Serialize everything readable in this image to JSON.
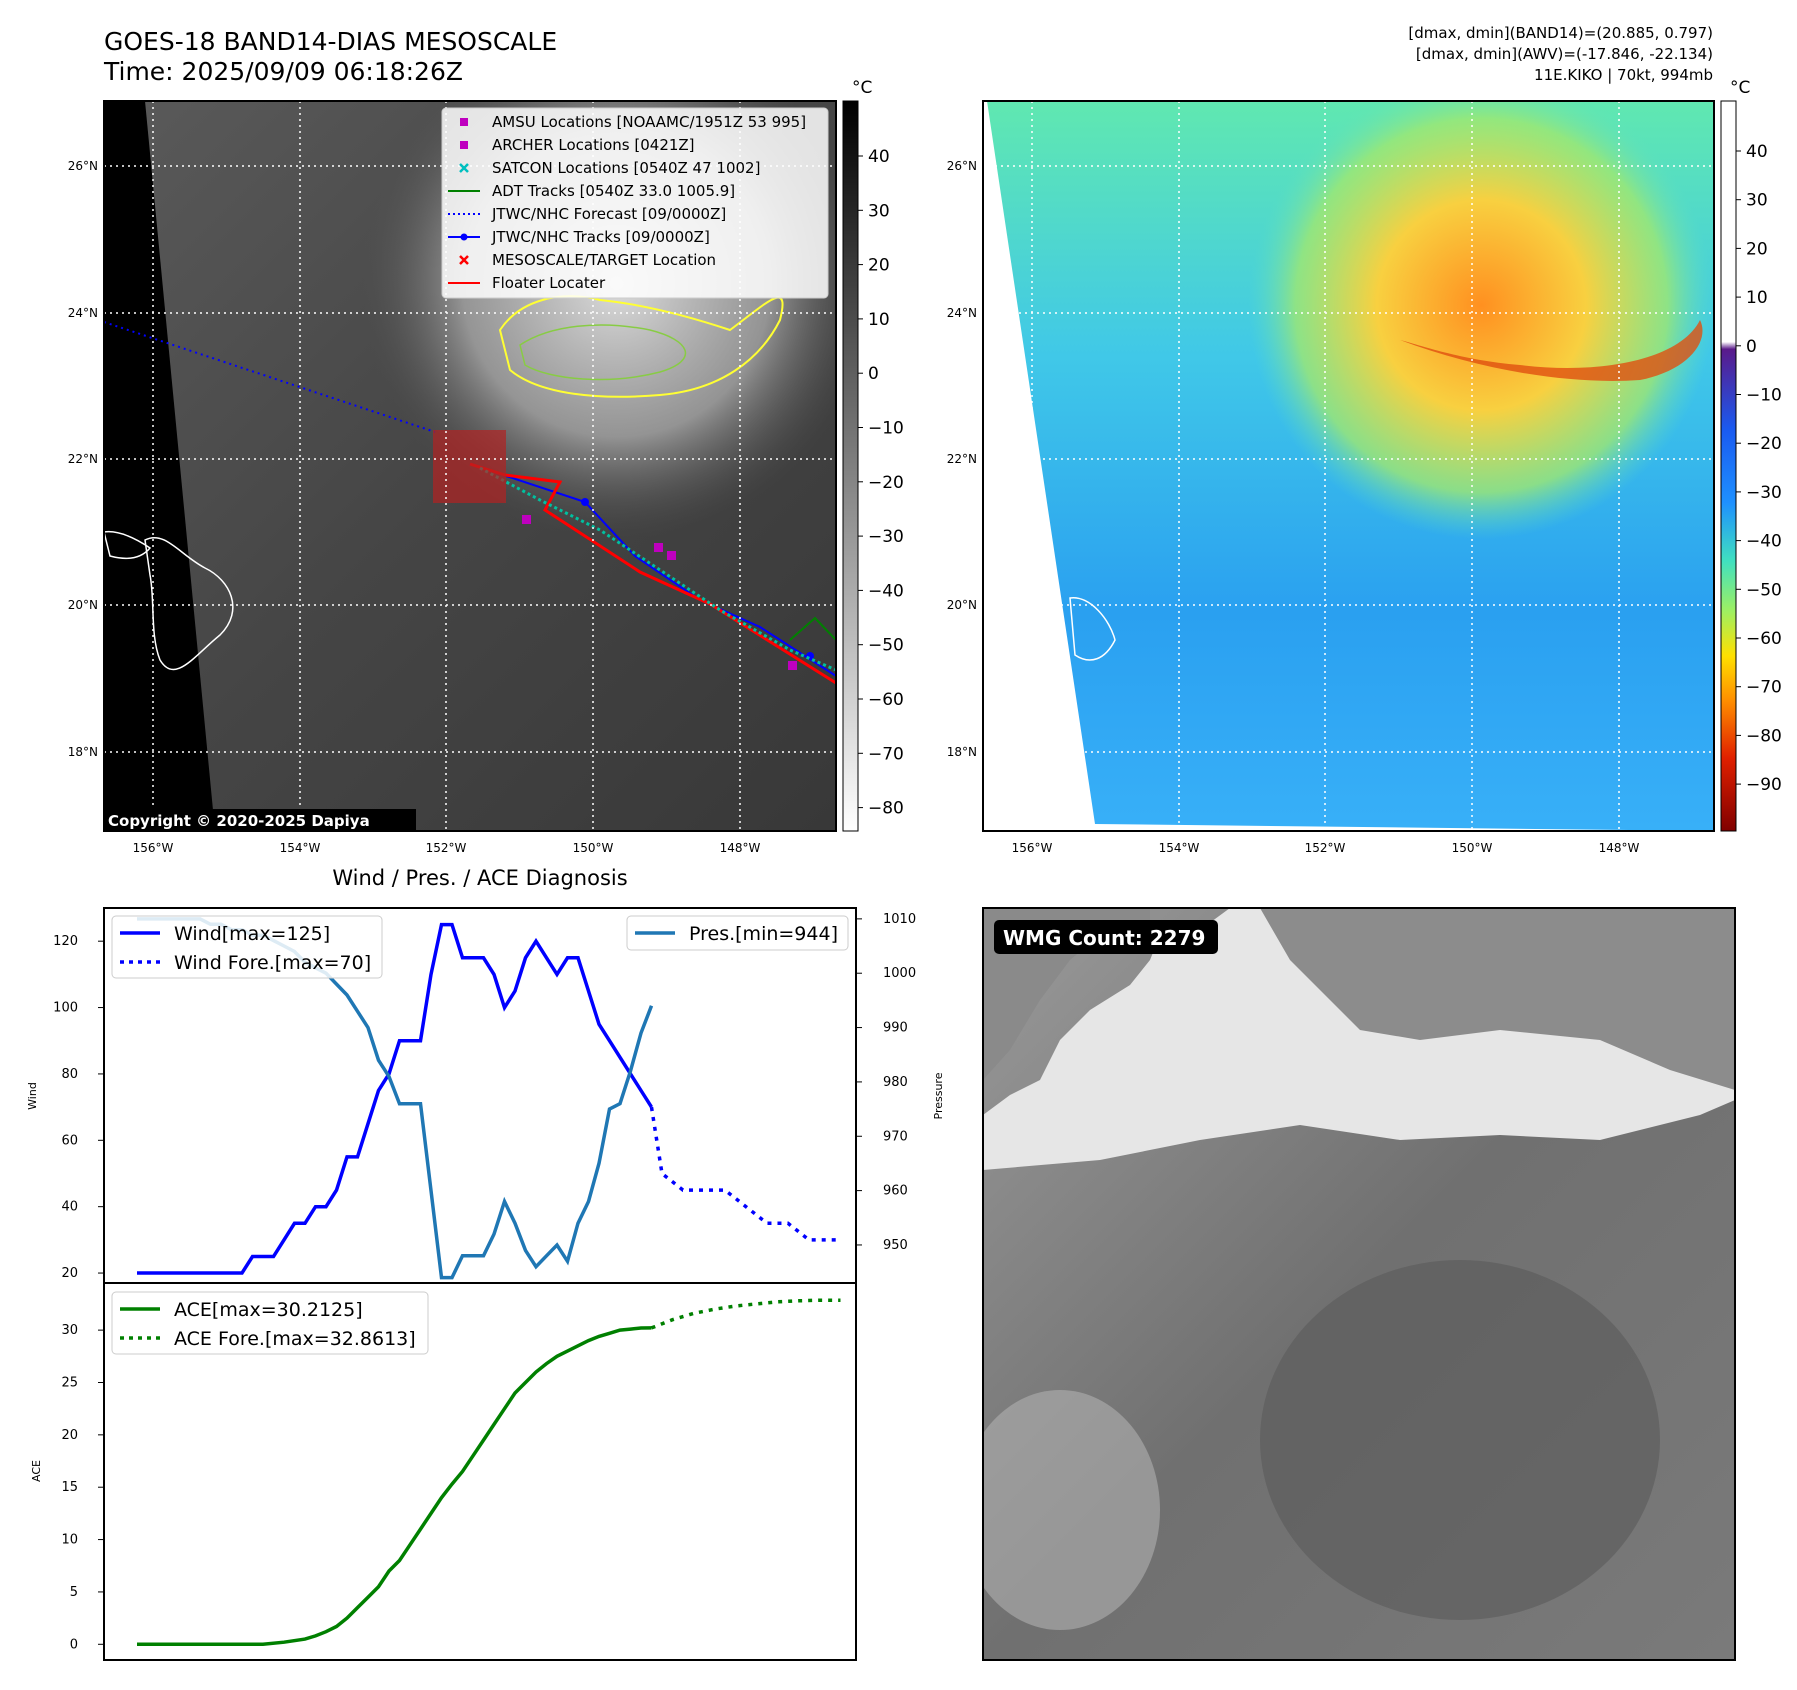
{
  "header": {
    "title_line1": "GOES-18 BAND14-DIAS MESOSCALE",
    "title_line2": "Time: 2025/09/09 06:18:26Z",
    "info_line1": "[dmax, dmin](BAND14)=(20.885, 0.797)",
    "info_line2": "[dmax, dmin](AWV)=(-17.846, -22.134)",
    "info_line3": "11E.KIKO | 70kt, 994mb"
  },
  "map_axes": {
    "lat_labels": [
      "26°N",
      "24°N",
      "22°N",
      "20°N",
      "18°N"
    ],
    "lon_labels": [
      "156°W",
      "154°W",
      "152°W",
      "150°W",
      "148°W"
    ]
  },
  "ir_panel": {
    "colorbar_unit": "°C",
    "colorbar_ticks": [
      "40",
      "30",
      "20",
      "10",
      "0",
      "−10",
      "−20",
      "−30",
      "−40",
      "−50",
      "−60",
      "−70",
      "−80"
    ],
    "copyright": "Copyright © 2020-2025 Dapiya",
    "legend": [
      {
        "label": "AMSU Locations [NOAAMC/1951Z 53 995]",
        "color": "#bf00bf",
        "icon": "square-marker"
      },
      {
        "label": "ARCHER Locations [0421Z]",
        "color": "#bf00bf",
        "icon": "square-marker"
      },
      {
        "label": "SATCON Locations [0540Z 47 1002]",
        "color": "#00bfbf",
        "icon": "x-marker"
      },
      {
        "label": "ADT Tracks [0540Z 33.0 1005.9]",
        "color": "#008000",
        "icon": "solid-line"
      },
      {
        "label": "JTWC/NHC Forecast [09/0000Z]",
        "color": "#0000ff",
        "icon": "dotted-line"
      },
      {
        "label": "JTWC/NHC Tracks [09/0000Z]",
        "color": "#0000ff",
        "icon": "line-dot"
      },
      {
        "label": "MESOSCALE/TARGET Location",
        "color": "#ff0000",
        "icon": "x-marker"
      },
      {
        "label": "Floater Locater",
        "color": "#ff0000",
        "icon": "solid-line"
      }
    ]
  },
  "wv_panel": {
    "colorbar_unit": "°C",
    "colorbar_ticks": [
      "40",
      "30",
      "20",
      "10",
      "0",
      "−10",
      "−20",
      "−30",
      "−40",
      "−50",
      "−60",
      "−70",
      "−80",
      "−90"
    ]
  },
  "diagnosis": {
    "title": "Wind / Pres. / ACE Diagnosis",
    "wind_axis_label": "Wind",
    "pressure_axis_label": "Pressure",
    "ace_axis_label": "ACE",
    "wind_ticks": [
      "120",
      "100",
      "80",
      "60",
      "40",
      "20"
    ],
    "pressure_ticks": [
      "1010",
      "1000",
      "990",
      "980",
      "970",
      "960",
      "950"
    ],
    "ace_ticks": [
      "30",
      "25",
      "20",
      "15",
      "10",
      "5",
      "0"
    ],
    "legend_wind": "Wind[max=125]",
    "legend_wind_fore": "Wind Fore.[max=70]",
    "legend_pres": "Pres.[min=944]",
    "legend_ace": "ACE[max=30.2125]",
    "legend_ace_fore": "ACE Fore.[max=32.8613]"
  },
  "wmg_panel": {
    "label": "WMG Count: 2279"
  },
  "colors": {
    "wind": "#0000ff",
    "pressure": "#1f77b4",
    "ace": "#008000"
  },
  "chart_data": [
    {
      "type": "line",
      "title": "Wind / Pres. / ACE Diagnosis",
      "ylabel": "Wind",
      "y2label": "Pressure",
      "ylim": [
        17,
        130
      ],
      "y2lim": [
        943,
        1012
      ],
      "series": [
        {
          "name": "Wind[max=125]",
          "axis": "left",
          "x": [
            0,
            1,
            2,
            3,
            4,
            5,
            6,
            7,
            8,
            9,
            10,
            11,
            12,
            13,
            14,
            15,
            16,
            17,
            18,
            19,
            20,
            21,
            22,
            23,
            24,
            25,
            26,
            27,
            28,
            29,
            30,
            31,
            32,
            33,
            34,
            35,
            36,
            37,
            38,
            39,
            40,
            41,
            42,
            43,
            44,
            45,
            46,
            47,
            48,
            49
          ],
          "values": [
            20,
            20,
            20,
            20,
            20,
            20,
            20,
            20,
            20,
            20,
            20,
            25,
            25,
            25,
            30,
            35,
            35,
            40,
            40,
            45,
            55,
            55,
            65,
            75,
            80,
            90,
            90,
            90,
            110,
            125,
            125,
            115,
            115,
            115,
            110,
            100,
            105,
            115,
            120,
            115,
            110,
            115,
            115,
            105,
            95,
            90,
            85,
            80,
            75,
            70
          ]
        },
        {
          "name": "Wind Fore.[max=70]",
          "axis": "left",
          "style": "dotted",
          "x": [
            49,
            50,
            52,
            54,
            56,
            58,
            60,
            62,
            64,
            67
          ],
          "values": [
            70,
            50,
            45,
            45,
            45,
            40,
            35,
            35,
            30,
            30
          ]
        },
        {
          "name": "Pres.[min=944]",
          "axis": "right",
          "x": [
            0,
            1,
            2,
            3,
            4,
            5,
            6,
            7,
            8,
            9,
            10,
            11,
            12,
            13,
            14,
            15,
            16,
            17,
            18,
            19,
            20,
            21,
            22,
            23,
            24,
            25,
            26,
            27,
            28,
            29,
            30,
            31,
            32,
            33,
            34,
            35,
            36,
            37,
            38,
            39,
            40,
            41,
            42,
            43,
            44,
            45,
            46,
            47,
            48,
            49
          ],
          "values": [
            1010,
            1010,
            1010,
            1010,
            1010,
            1010,
            1010,
            1009,
            1009,
            1008,
            1008,
            1007,
            1007,
            1006,
            1005,
            1004,
            1002,
            1001,
            1000,
            998,
            996,
            993,
            990,
            984,
            981,
            976,
            976,
            976,
            960,
            944,
            944,
            948,
            948,
            948,
            952,
            958,
            954,
            949,
            946,
            948,
            950,
            947,
            954,
            958,
            965,
            975,
            976,
            982,
            989,
            994
          ]
        },
        {
          "name": "ACE[max=30.2125]",
          "axis": "ace",
          "x": [
            0,
            4,
            8,
            12,
            14,
            16,
            17,
            18,
            19,
            20,
            21,
            22,
            23,
            24,
            25,
            26,
            27,
            28,
            29,
            30,
            31,
            32,
            33,
            34,
            35,
            36,
            37,
            38,
            39,
            40,
            41,
            42,
            43,
            44,
            45,
            46,
            47,
            48,
            49
          ],
          "values": [
            0,
            0,
            0,
            0,
            0.2,
            0.5,
            0.8,
            1.2,
            1.7,
            2.5,
            3.5,
            4.5,
            5.5,
            7,
            8,
            9.5,
            11,
            12.5,
            14,
            15.3,
            16.5,
            18,
            19.5,
            21,
            22.5,
            24,
            25,
            26,
            26.8,
            27.5,
            28,
            28.5,
            29,
            29.4,
            29.7,
            30,
            30.1,
            30.2,
            30.2125
          ]
        },
        {
          "name": "ACE Fore.[max=32.8613]",
          "axis": "ace",
          "style": "dotted",
          "x": [
            49,
            51,
            53,
            55,
            57,
            59,
            61,
            63,
            65,
            67
          ],
          "values": [
            30.2125,
            31,
            31.6,
            32,
            32.3,
            32.5,
            32.7,
            32.8,
            32.86,
            32.8613
          ]
        }
      ],
      "ace_ylim": [
        -1.5,
        34.5
      ],
      "legend_placement": "upper-left / upper-right"
    }
  ]
}
